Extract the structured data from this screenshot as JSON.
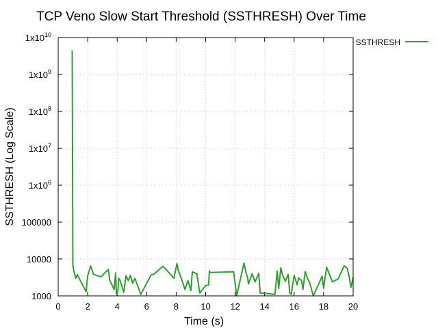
{
  "chart_data": {
    "type": "line",
    "title": "TCP Veno Slow Start Threshold (SSTHRESH) Over Time",
    "xlabel": "Time (s)",
    "ylabel": "SSTHRESH (Log Scale)",
    "xlim": [
      0,
      20
    ],
    "ylim": [
      1000,
      10000000000
    ],
    "y_scale": "log",
    "grid": true,
    "legend_position": "top-right outside",
    "x_ticks": [
      "0",
      "2",
      "4",
      "6",
      "8",
      "10",
      "12",
      "14",
      "16",
      "18",
      "20"
    ],
    "y_ticks": [
      {
        "value": 1000,
        "base": "1000",
        "exp": ""
      },
      {
        "value": 10000,
        "base": "10000",
        "exp": ""
      },
      {
        "value": 100000,
        "base": "100000",
        "exp": ""
      },
      {
        "value": 1000000,
        "base": "1x10",
        "exp": "6"
      },
      {
        "value": 10000000,
        "base": "1x10",
        "exp": "7"
      },
      {
        "value": 100000000,
        "base": "1x10",
        "exp": "8"
      },
      {
        "value": 1000000000,
        "base": "1x10",
        "exp": "9"
      },
      {
        "value": 10000000000,
        "base": "1x10",
        "exp": "10"
      }
    ],
    "series": [
      {
        "name": "SSTHRESH",
        "color": "#2ca02c",
        "x": [
          0.95,
          1.0,
          1.05,
          1.2,
          1.3,
          1.32,
          1.9,
          2.0,
          2.2,
          2.4,
          2.9,
          3.4,
          3.5,
          3.8,
          3.9,
          3.95,
          4.05,
          4.1,
          4.2,
          4.45,
          4.6,
          4.75,
          4.9,
          5.05,
          5.2,
          5.6,
          6.3,
          6.5,
          7.1,
          7.3,
          7.85,
          8.05,
          8.1,
          8.15,
          8.2,
          8.6,
          8.8,
          9.0,
          9.05,
          9.1,
          9.4,
          9.6,
          10.0,
          10.2,
          10.25,
          10.3,
          11.9,
          12.1,
          12.6,
          12.75,
          12.85,
          12.9,
          13.15,
          13.35,
          13.6,
          13.7,
          14.7,
          14.85,
          14.95,
          15.1,
          15.2,
          15.4,
          15.6,
          15.7,
          15.8,
          16.0,
          16.2,
          16.3,
          16.5,
          16.6,
          16.75,
          16.9,
          17.05,
          17.3,
          17.9,
          18.0,
          18.2,
          18.6,
          19.0,
          19.1,
          19.4,
          19.6,
          19.75,
          19.85,
          20.0
        ],
        "values": [
          4500000000,
          6500,
          5000,
          3000,
          3800,
          3600,
          1300,
          3500,
          6500,
          3800,
          3300,
          5200,
          2600,
          1500,
          4200,
          1100,
          1350,
          3000,
          2600,
          1250,
          3500,
          2600,
          3600,
          2200,
          3000,
          1100,
          3700,
          3900,
          6300,
          5300,
          3000,
          7500,
          6000,
          4700,
          4400,
          1500,
          2600,
          1400,
          2600,
          4500,
          4000,
          1200,
          1900,
          1950,
          4800,
          4300,
          4500,
          1000,
          7800,
          4000,
          3100,
          2100,
          4000,
          2400,
          4100,
          1200,
          1100,
          4700,
          1600,
          5800,
          3800,
          2500,
          3800,
          1200,
          1100,
          3600,
          2000,
          3100,
          2600,
          1500,
          4600,
          3000,
          2300,
          1000,
          3400,
          1600,
          6000,
          2400,
          2900,
          3700,
          6500,
          5600,
          3000,
          1700,
          3200
        ]
      }
    ]
  }
}
